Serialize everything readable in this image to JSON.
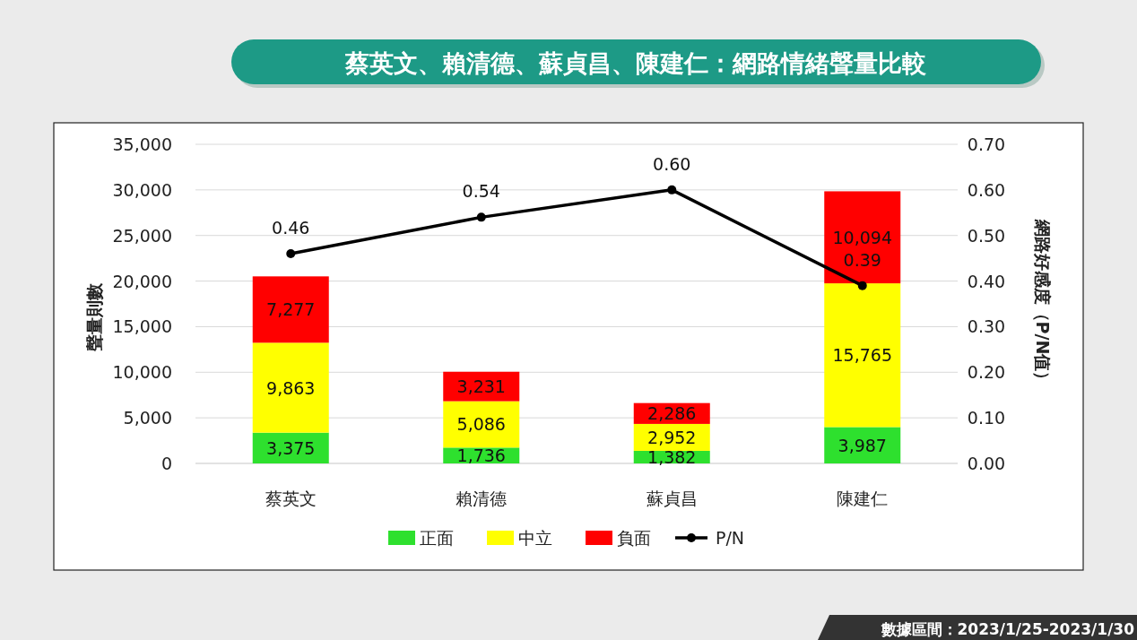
{
  "chart_data": {
    "type": "bar",
    "title": "蔡英文、賴清德、蘇貞昌、陳建仁：網路情緒聲量比較",
    "ylabel": "聲量則數",
    "y2label": "網路好感度（P/N值）",
    "annotations": [
      "數據區間：2023/1/25-2023/1/30"
    ],
    "categories": [
      "蔡英文",
      "賴清德",
      "蘇貞昌",
      "陳建仁"
    ],
    "stacked": true,
    "series": [
      {
        "name": "正面",
        "color": "#2ee02e",
        "values": [
          3375,
          1736,
          1382,
          3987
        ],
        "value_labels": [
          "3,375",
          "1,736",
          "1,382",
          "3,987"
        ]
      },
      {
        "name": "中立",
        "color": "#ffff00",
        "values": [
          9863,
          5086,
          2952,
          15765
        ],
        "value_labels": [
          "9,863",
          "5,086",
          "2,952",
          "15,765"
        ]
      },
      {
        "name": "負面",
        "color": "#ff0000",
        "values": [
          7277,
          3231,
          2286,
          10094
        ],
        "value_labels": [
          "7,277",
          "3,231",
          "2,286",
          "10,094"
        ]
      },
      {
        "name": "P/N",
        "type": "line",
        "axis": "y2",
        "color": "#000000",
        "values": [
          0.46,
          0.54,
          0.6,
          0.39
        ],
        "value_labels": [
          "0.46",
          "0.54",
          "0.60",
          "0.39"
        ]
      }
    ],
    "ylim": [
      0,
      35000
    ],
    "yticks": [
      0,
      {
        "value": 5000,
        "label": "5,000"
      },
      {
        "value": 10000,
        "label": "10,000"
      },
      {
        "value": 15000,
        "label": "15,000"
      },
      {
        "value": 20000,
        "label": "20,000"
      },
      {
        "value": 25000,
        "label": "25,000"
      },
      {
        "value": 30000,
        "label": "30,000"
      },
      {
        "value": 35000,
        "label": "35,000"
      }
    ],
    "y2lim": [
      0,
      0.7
    ],
    "y2ticks": [
      {
        "value": 0,
        "label": "0.00"
      },
      {
        "value": 0.1,
        "label": "0.10"
      },
      {
        "value": 0.2,
        "label": "0.20"
      },
      {
        "value": 0.3,
        "label": "0.30"
      },
      {
        "value": 0.4,
        "label": "0.40"
      },
      {
        "value": 0.5,
        "label": "0.50"
      },
      {
        "value": 0.6,
        "label": "0.60"
      },
      {
        "value": 0.7,
        "label": "0.70"
      }
    ],
    "grid": "y",
    "legend": "bottom",
    "marker": "circle",
    "line_style": "solid"
  }
}
